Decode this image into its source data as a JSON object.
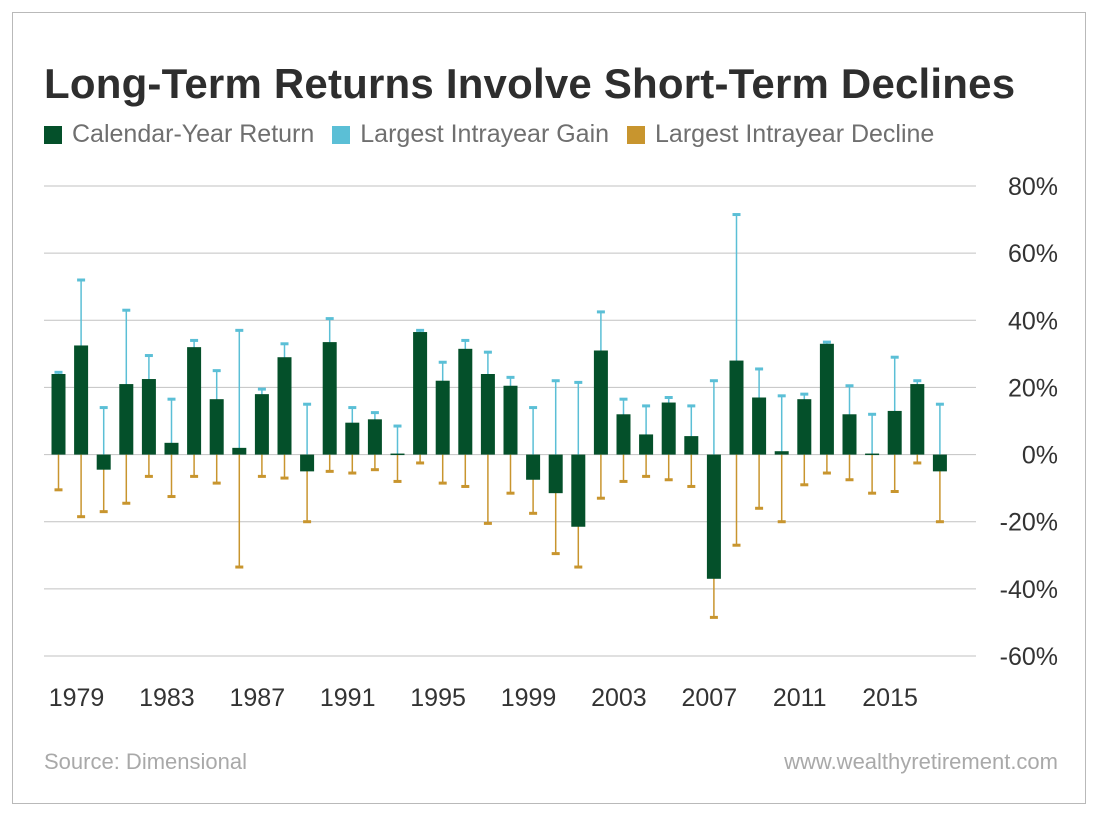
{
  "colors": {
    "return": "#04502a",
    "gain": "#5bbfd6",
    "decline": "#c8952e",
    "grid": "#c2c2c2",
    "text": "#333333"
  },
  "chart_data": {
    "type": "bar",
    "title": "Long-Term Returns Involve Short-Term Declines",
    "legend": [
      {
        "label": "Calendar-Year Return",
        "color_key": "return"
      },
      {
        "label": "Largest Intrayear Gain",
        "color_key": "gain"
      },
      {
        "label": "Largest Intrayear Decline",
        "color_key": "decline"
      }
    ],
    "ylim": [
      -60,
      80
    ],
    "y_ticks": [
      80,
      60,
      40,
      20,
      0,
      -20,
      -40,
      -60
    ],
    "y_tick_labels": [
      "80%",
      "60%",
      "40%",
      "20%",
      "0%",
      "-20%",
      "-40%",
      "-60%"
    ],
    "x_tick_labels": [
      "1979",
      "1983",
      "1987",
      "1991",
      "1995",
      "1999",
      "2003",
      "2007",
      "2011",
      "2015"
    ],
    "grid": true,
    "years": [
      1979,
      1980,
      1981,
      1982,
      1983,
      1984,
      1985,
      1986,
      1987,
      1988,
      1989,
      1990,
      1991,
      1992,
      1993,
      1994,
      1995,
      1996,
      1997,
      1998,
      1999,
      2000,
      2001,
      2002,
      2003,
      2004,
      2005,
      2006,
      2007,
      2008,
      2009,
      2010,
      2011,
      2012,
      2013,
      2014,
      2015,
      2016,
      2017,
      2018
    ],
    "series": [
      {
        "name": "Calendar-Year Return",
        "values": [
          24,
          32.5,
          -4.5,
          21,
          22.5,
          3.5,
          32,
          16.5,
          2,
          18,
          29,
          -5,
          33.5,
          9.5,
          10.5,
          0.3,
          36.5,
          22,
          31.5,
          24,
          20.5,
          -7.5,
          -11.5,
          -21.5,
          31,
          12,
          6,
          15.5,
          5.5,
          -37,
          28,
          17,
          1,
          16.5,
          33,
          12,
          0.3,
          13,
          21,
          -5
        ]
      },
      {
        "name": "Largest Intrayear Gain",
        "values": [
          24.5,
          52,
          14,
          43,
          29.5,
          16.5,
          34,
          25,
          37,
          19.5,
          33,
          15,
          40.5,
          14,
          12.5,
          8.5,
          37,
          27.5,
          34,
          30.5,
          23,
          14,
          22,
          21.5,
          42.5,
          16.5,
          14.5,
          17,
          14.5,
          22,
          71.5,
          25.5,
          17.5,
          18,
          33.5,
          20.5,
          12,
          29,
          22,
          15
        ]
      },
      {
        "name": "Largest Intrayear Decline",
        "values": [
          -10.5,
          -18.5,
          -17,
          -14.5,
          -6.5,
          -12.5,
          -6.5,
          -8.5,
          -33.5,
          -6.5,
          -7,
          -20,
          -5,
          -5.5,
          -4.5,
          -8,
          -2.5,
          -8.5,
          -9.5,
          -20.5,
          -11.5,
          -17.5,
          -29.5,
          -33.5,
          -13,
          -8,
          -6.5,
          -7.5,
          -9.5,
          -48.5,
          -27,
          -16,
          -20,
          -9,
          -5.5,
          -7.5,
          -11.5,
          -11,
          -2.5,
          -20
        ]
      }
    ]
  },
  "footer": {
    "source": "Source: Dimensional",
    "website": "www.wealthyretirement.com"
  }
}
